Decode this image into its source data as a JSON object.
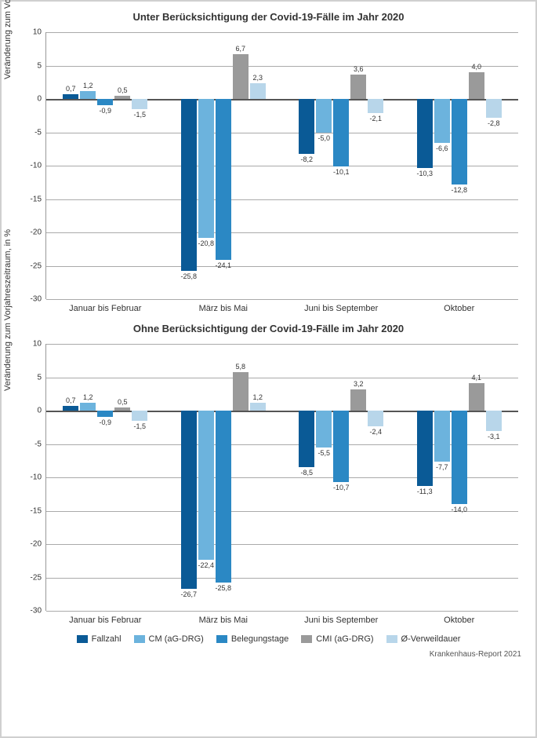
{
  "colors": {
    "series": [
      "#0a5a96",
      "#6cb3dd",
      "#2b88c4",
      "#9a9a9a",
      "#b8d6ea"
    ],
    "grid": "#aaaaaa",
    "zero": "#555555",
    "background": "#ffffff",
    "border": "#d0d0d0"
  },
  "y_axis": {
    "label": "Veränderung zum Vorjahreszeitraum, in %",
    "min": -30,
    "max": 10,
    "step": 5,
    "ticks": [
      10,
      5,
      0,
      -5,
      -10,
      -15,
      -20,
      -25,
      -30
    ]
  },
  "categories": [
    "Januar bis Februar",
    "März bis Mai",
    "Juni bis September",
    "Oktober"
  ],
  "series_names": [
    "Fallzahl",
    "CM (aG-DRG)",
    "Belegungstage",
    "CMI (aG-DRG)",
    "Ø-Verweildauer"
  ],
  "chart1": {
    "title": "Unter Berücksichtigung der Covid-19-Fälle im Jahr 2020",
    "data": [
      [
        0.7,
        1.2,
        -0.9,
        0.5,
        -1.5
      ],
      [
        -25.8,
        -20.8,
        -24.1,
        6.7,
        2.3
      ],
      [
        -8.2,
        -5.0,
        -10.1,
        3.6,
        -2.1
      ],
      [
        -10.3,
        -6.6,
        -12.8,
        4.0,
        -2.8
      ]
    ],
    "labels": [
      [
        "0,7",
        "1,2",
        "-0,9",
        "0,5",
        "-1,5"
      ],
      [
        "-25,8",
        "-20,8",
        "-24,1",
        "6,7",
        "2,3"
      ],
      [
        "-8,2",
        "-5,0",
        "-10,1",
        "3,6",
        "-2,1"
      ],
      [
        "-10,3",
        "-6,6",
        "-12,8",
        "4,0",
        "-2,8"
      ]
    ]
  },
  "chart2": {
    "title": "Ohne Berücksichtigung der Covid-19-Fälle im Jahr 2020",
    "data": [
      [
        0.7,
        1.2,
        -0.9,
        0.5,
        -1.5
      ],
      [
        -26.7,
        -22.4,
        -25.8,
        5.8,
        1.2
      ],
      [
        -8.5,
        -5.5,
        -10.7,
        3.2,
        -2.4
      ],
      [
        -11.3,
        -7.7,
        -14.0,
        4.1,
        -3.1
      ]
    ],
    "labels": [
      [
        "0,7",
        "1,2",
        "-0,9",
        "0,5",
        "-1,5"
      ],
      [
        "-26,7",
        "-22,4",
        "-25,8",
        "5,8",
        "1,2"
      ],
      [
        "-8,5",
        "-5,5",
        "-10,7",
        "3,2",
        "-2,4"
      ],
      [
        "-11,3",
        "-7,7",
        "-14,0",
        "4,1",
        "-3,1"
      ]
    ]
  },
  "footer": "Krankenhaus-Report 2021"
}
